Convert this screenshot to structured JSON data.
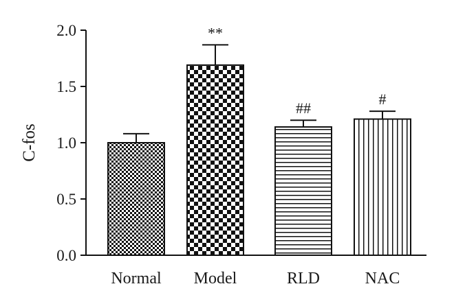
{
  "chart_data": {
    "type": "bar",
    "ylabel": "C-fos",
    "xlabel": "",
    "ylim": [
      0,
      2.0
    ],
    "yticks": [
      "0.0",
      "0.5",
      "1.0",
      "1.5",
      "2.0"
    ],
    "categories": [
      "Normal",
      "Model",
      "RLD",
      "NAC"
    ],
    "values": [
      1.0,
      1.69,
      1.14,
      1.21
    ],
    "errors": [
      0.08,
      0.18,
      0.06,
      0.07
    ],
    "annotations": [
      "",
      "**",
      "##",
      "#"
    ],
    "patterns": [
      "fine-checker",
      "coarse-checker",
      "horizontal-lines",
      "vertical-lines"
    ],
    "grid": false
  }
}
